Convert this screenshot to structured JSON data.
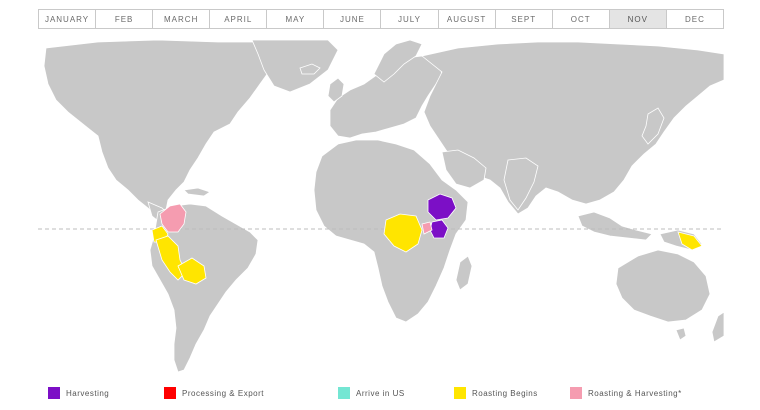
{
  "months": [
    "JANUARY",
    "FEB",
    "MARCH",
    "APRIL",
    "MAY",
    "JUNE",
    "JULY",
    "AUGUST",
    "SEPT",
    "OCT",
    "NOV",
    "DEC"
  ],
  "selected_month": "NOV",
  "legend": [
    {
      "label": "Harvesting",
      "color": "#7c0fc6"
    },
    {
      "label": "Processing & Export",
      "color": "#ff0000"
    },
    {
      "label": "Arrive in US",
      "color": "#74e6d3"
    },
    {
      "label": "Roasting Begins",
      "color": "#ffe500"
    },
    {
      "label": "Roasting & Harvesting*",
      "color": "#f59cb0"
    }
  ],
  "map": {
    "land_color": "#c8c8c8",
    "border_color": "#ffffff",
    "equator_color": "#bdbdbd",
    "regions": [
      {
        "name": "Colombia",
        "status": "Roasting & Harvesting*"
      },
      {
        "name": "Ecuador",
        "status": "Roasting Begins"
      },
      {
        "name": "Peru",
        "status": "Roasting Begins"
      },
      {
        "name": "Bolivia",
        "status": "Roasting Begins"
      },
      {
        "name": "Democratic Republic of the Congo",
        "status": "Roasting Begins"
      },
      {
        "name": "Ethiopia",
        "status": "Harvesting"
      },
      {
        "name": "Kenya",
        "status": "Harvesting"
      },
      {
        "name": "Uganda",
        "status": "Roasting & Harvesting*"
      },
      {
        "name": "Papua New Guinea",
        "status": "Roasting Begins"
      }
    ]
  }
}
